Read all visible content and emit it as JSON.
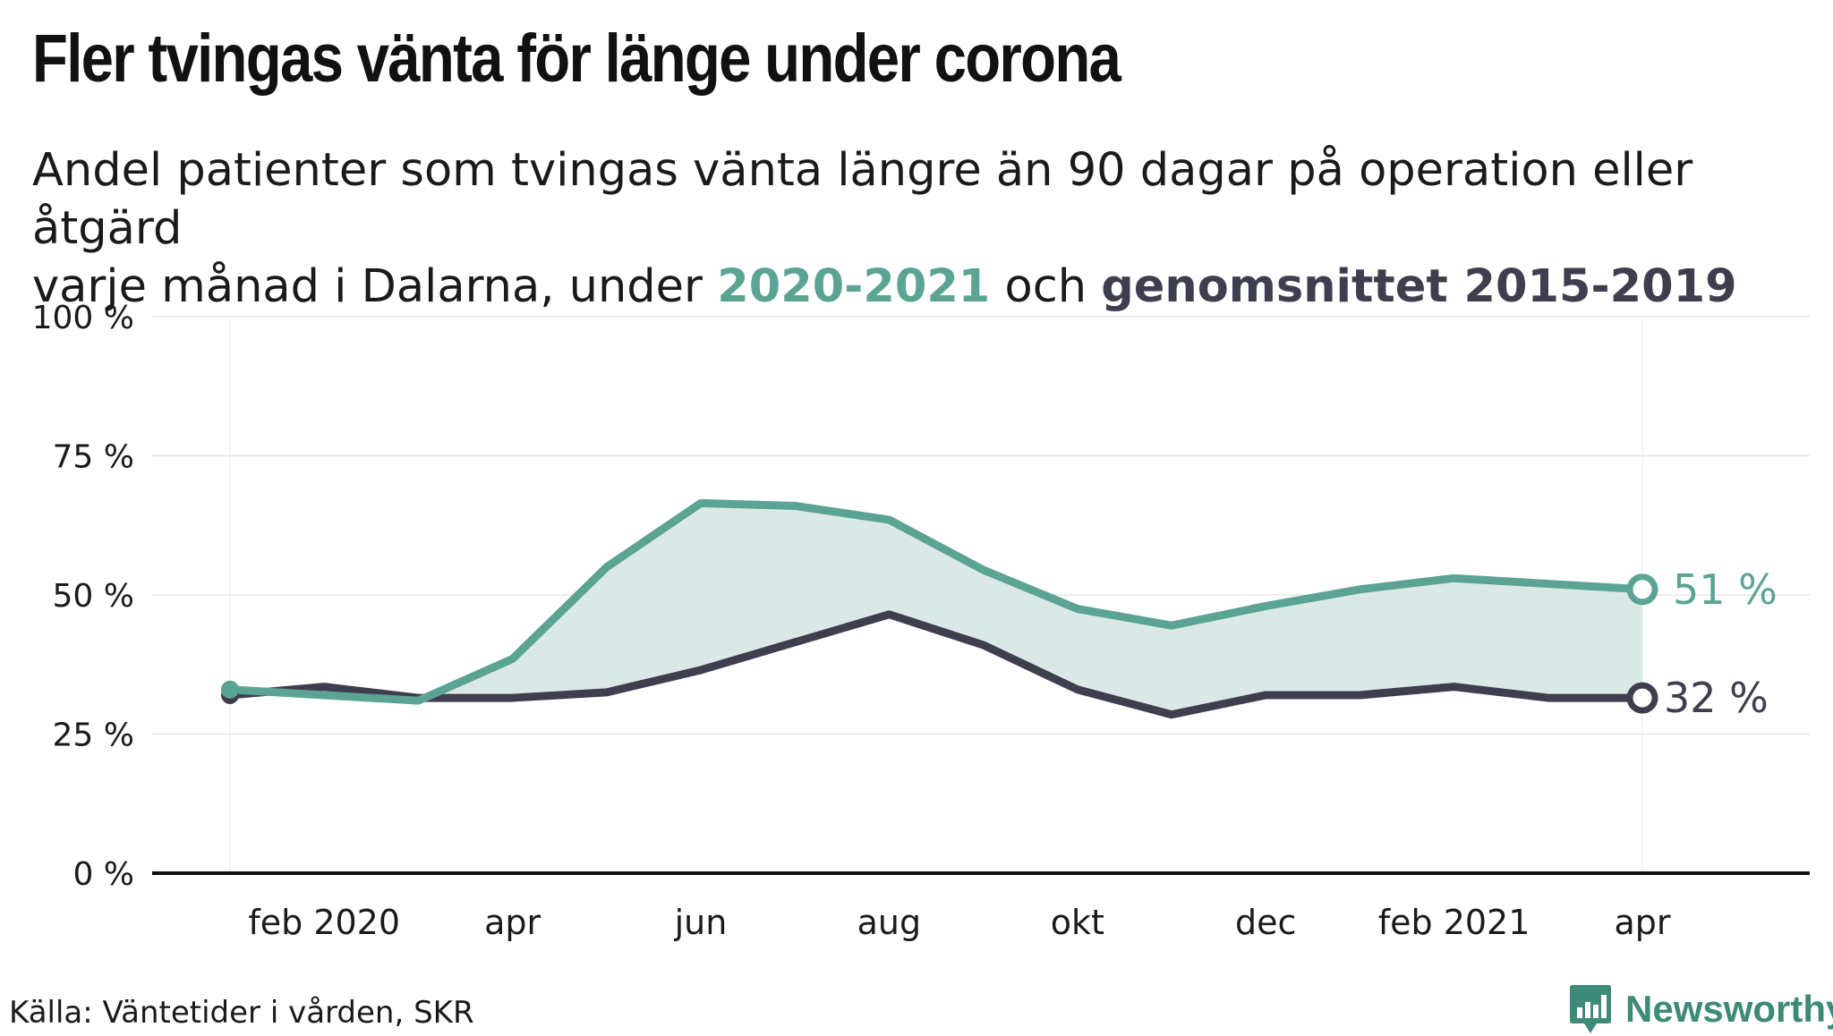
{
  "title": "Fler tvingas vänta för länge under corona",
  "subtitle": {
    "line1": "Andel patienter som tvingas vänta längre än 90 dagar på operation eller åtgärd",
    "prefix": "varje månad i Dalarna, under ",
    "series_a_label": "2020-2021",
    "middle": " och ",
    "series_b_label": "genomsnittet 2015-2019"
  },
  "source": "Källa: Väntetider i vården, SKR",
  "logo": {
    "text": "Newsworthy",
    "icon": "bar-chart-speech-bubble-icon",
    "color": "#3d8a79"
  },
  "colors": {
    "series_a": "#5ba393",
    "series_b": "#3e3e4e",
    "fill": "#dbe9e6",
    "grid": "#e6e6e6",
    "axis": "#111111"
  },
  "chart_data": {
    "type": "line",
    "title": "Fler tvingas vänta för länge under corona",
    "xlabel": "",
    "ylabel": "",
    "ylim": [
      0,
      100
    ],
    "y_ticks": [
      0,
      25,
      50,
      75,
      100
    ],
    "y_tick_labels": [
      "0 %",
      "25 %",
      "50 %",
      "75 %",
      "100 %"
    ],
    "grid": true,
    "x": [
      "2020-01",
      "2020-02",
      "2020-03",
      "2020-04",
      "2020-05",
      "2020-06",
      "2020-07",
      "2020-08",
      "2020-09",
      "2020-10",
      "2020-11",
      "2020-12",
      "2021-01",
      "2021-02",
      "2021-03",
      "2021-04"
    ],
    "x_ticks": [
      {
        "x": "2020-02",
        "label": "feb 2020"
      },
      {
        "x": "2020-04",
        "label": "apr"
      },
      {
        "x": "2020-06",
        "label": "jun"
      },
      {
        "x": "2020-08",
        "label": "aug"
      },
      {
        "x": "2020-10",
        "label": "okt"
      },
      {
        "x": "2020-12",
        "label": "dec"
      },
      {
        "x": "2021-02",
        "label": "feb 2021"
      },
      {
        "x": "2021-04",
        "label": "apr"
      }
    ],
    "series": [
      {
        "name": "2020-2021",
        "values": [
          33,
          32,
          31,
          38.5,
          55,
          66.5,
          66,
          63.5,
          54.5,
          47.5,
          44.5,
          48,
          51,
          53,
          52,
          51
        ],
        "end_label": "51 %"
      },
      {
        "name": "genomsnittet 2015-2019",
        "values": [
          32,
          33.5,
          31.5,
          31.5,
          32.5,
          36.5,
          41.5,
          46.5,
          41,
          33,
          28.5,
          32,
          32,
          33.5,
          31.5,
          31.5
        ],
        "end_label": "32 %"
      }
    ]
  }
}
